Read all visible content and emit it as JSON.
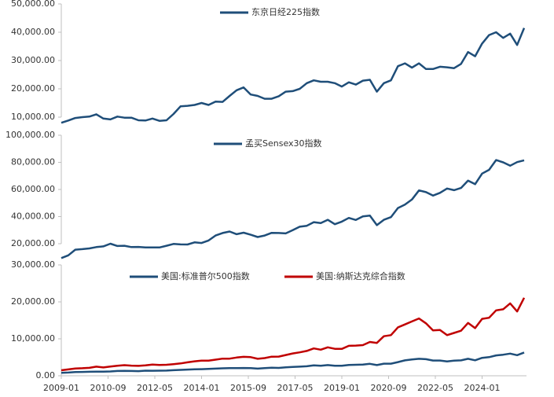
{
  "chart_data": [
    {
      "type": "line",
      "x": [
        "2009-01",
        "2009-04",
        "2009-07",
        "2009-10",
        "2010-01",
        "2010-04",
        "2010-07",
        "2010-10",
        "2011-01",
        "2011-04",
        "2011-07",
        "2011-10",
        "2012-01",
        "2012-04",
        "2012-07",
        "2012-10",
        "2013-01",
        "2013-04",
        "2013-07",
        "2013-10",
        "2014-01",
        "2014-04",
        "2014-07",
        "2014-10",
        "2015-01",
        "2015-04",
        "2015-07",
        "2015-10",
        "2016-01",
        "2016-04",
        "2016-07",
        "2016-10",
        "2017-01",
        "2017-04",
        "2017-07",
        "2017-10",
        "2018-01",
        "2018-04",
        "2018-07",
        "2018-10",
        "2019-01",
        "2019-04",
        "2019-07",
        "2019-10",
        "2020-01",
        "2020-04",
        "2020-07",
        "2020-10",
        "2021-01",
        "2021-04",
        "2021-07",
        "2021-10",
        "2022-01",
        "2022-04",
        "2022-07",
        "2022-10",
        "2023-01",
        "2023-04",
        "2023-07",
        "2023-10",
        "2024-01",
        "2024-04",
        "2024-07",
        "2024-10",
        "2025-01",
        "2025-04",
        "2025-07"
      ],
      "xlim": [
        "2009-01",
        "2025-08"
      ],
      "ylim": [
        10000,
        50000
      ],
      "yticks": [
        {
          "value": 10000,
          "label": "10,000.00"
        },
        {
          "value": 20000,
          "label": "20,000.00"
        },
        {
          "value": 30000,
          "label": "30,000.00"
        },
        {
          "value": 40000,
          "label": "40,000.00"
        },
        {
          "value": 50000,
          "label": "50,000.00"
        }
      ],
      "series": [
        {
          "name": "东京日经225指数",
          "color": "#1f4e79",
          "values": [
            8000,
            8800,
            9700,
            10000,
            10200,
            11000,
            9500,
            9200,
            10200,
            9800,
            9800,
            8900,
            8800,
            9500,
            8700,
            8900,
            11100,
            13800,
            14000,
            14300,
            15000,
            14300,
            15500,
            15400,
            17500,
            19500,
            20500,
            18000,
            17500,
            16500,
            16500,
            17400,
            19000,
            19200,
            20000,
            22000,
            23000,
            22500,
            22500,
            22000,
            20800,
            22300,
            21500,
            22900,
            23200,
            19000,
            22000,
            23000,
            28000,
            29000,
            27500,
            29000,
            27000,
            27000,
            27800,
            27600,
            27300,
            28800,
            33000,
            31500,
            36000,
            39000,
            40000,
            38000,
            39500,
            35500,
            41500
          ]
        }
      ]
    },
    {
      "type": "line",
      "x": [
        "2009-01",
        "2009-04",
        "2009-07",
        "2009-10",
        "2010-01",
        "2010-04",
        "2010-07",
        "2010-10",
        "2011-01",
        "2011-04",
        "2011-07",
        "2011-10",
        "2012-01",
        "2012-04",
        "2012-07",
        "2012-10",
        "2013-01",
        "2013-04",
        "2013-07",
        "2013-10",
        "2014-01",
        "2014-04",
        "2014-07",
        "2014-10",
        "2015-01",
        "2015-04",
        "2015-07",
        "2015-10",
        "2016-01",
        "2016-04",
        "2016-07",
        "2016-10",
        "2017-01",
        "2017-04",
        "2017-07",
        "2017-10",
        "2018-01",
        "2018-04",
        "2018-07",
        "2018-10",
        "2019-01",
        "2019-04",
        "2019-07",
        "2019-10",
        "2020-01",
        "2020-04",
        "2020-07",
        "2020-10",
        "2021-01",
        "2021-04",
        "2021-07",
        "2021-10",
        "2022-01",
        "2022-04",
        "2022-07",
        "2022-10",
        "2023-01",
        "2023-04",
        "2023-07",
        "2023-10",
        "2024-01",
        "2024-04",
        "2024-07",
        "2024-10",
        "2025-01",
        "2025-04",
        "2025-07"
      ],
      "xlim": [
        "2009-01",
        "2025-08"
      ],
      "ylim": [
        20000,
        100000
      ],
      "yticks": [
        {
          "value": 20000,
          "label": "20,000.00"
        },
        {
          "value": 40000,
          "label": "40,000.00"
        },
        {
          "value": 60000,
          "label": "60,000.00"
        },
        {
          "value": 80000,
          "label": "80,000.00"
        },
        {
          "value": 100000,
          "label": "100,000.00"
        }
      ],
      "series": [
        {
          "name": "孟买Sensex30指数",
          "color": "#1f4e79",
          "values": [
            9400,
            11400,
            15600,
            16000,
            16500,
            17500,
            18000,
            20000,
            18300,
            18500,
            17500,
            17600,
            17200,
            17300,
            17200,
            18500,
            19800,
            19500,
            19400,
            21000,
            20500,
            22400,
            26000,
            27900,
            29000,
            27000,
            28100,
            26600,
            24900,
            26000,
            28000,
            27900,
            27600,
            30000,
            32500,
            33200,
            35900,
            35200,
            37600,
            34400,
            36300,
            39000,
            37500,
            40100,
            40700,
            33700,
            37600,
            39600,
            46300,
            48800,
            52600,
            59300,
            58000,
            55500,
            57500,
            60700,
            59500,
            61100,
            66500,
            63900,
            71700,
            74500,
            81700,
            80000,
            77500,
            80200,
            81500
          ]
        }
      ]
    },
    {
      "type": "line",
      "x": [
        "2009-01",
        "2009-04",
        "2009-07",
        "2009-10",
        "2010-01",
        "2010-04",
        "2010-07",
        "2010-10",
        "2011-01",
        "2011-04",
        "2011-07",
        "2011-10",
        "2012-01",
        "2012-04",
        "2012-07",
        "2012-10",
        "2013-01",
        "2013-04",
        "2013-07",
        "2013-10",
        "2014-01",
        "2014-04",
        "2014-07",
        "2014-10",
        "2015-01",
        "2015-04",
        "2015-07",
        "2015-10",
        "2016-01",
        "2016-04",
        "2016-07",
        "2016-10",
        "2017-01",
        "2017-04",
        "2017-07",
        "2017-10",
        "2018-01",
        "2018-04",
        "2018-07",
        "2018-10",
        "2019-01",
        "2019-04",
        "2019-07",
        "2019-10",
        "2020-01",
        "2020-04",
        "2020-07",
        "2020-10",
        "2021-01",
        "2021-04",
        "2021-07",
        "2021-10",
        "2022-01",
        "2022-04",
        "2022-07",
        "2022-10",
        "2023-01",
        "2023-04",
        "2023-07",
        "2023-10",
        "2024-01",
        "2024-04",
        "2024-07",
        "2024-10",
        "2025-01",
        "2025-04",
        "2025-07"
      ],
      "xlim": [
        "2009-01",
        "2025-08"
      ],
      "xticks": [
        "2009-01",
        "2010-09",
        "2012-05",
        "2014-01",
        "2015-09",
        "2017-05",
        "2019-01",
        "2020-09",
        "2022-05",
        "2024-01"
      ],
      "ylim": [
        0,
        30000
      ],
      "yticks": [
        {
          "value": 0,
          "label": "0.00"
        },
        {
          "value": 10000,
          "label": "10,000.00"
        },
        {
          "value": 20000,
          "label": "20,000.00"
        },
        {
          "value": 30000,
          "label": "30,000.00"
        }
      ],
      "series": [
        {
          "name": "美国:标准普尔500指数",
          "color": "#1f4e79",
          "values": [
            800,
            870,
            990,
            1040,
            1080,
            1100,
            1100,
            1180,
            1290,
            1340,
            1290,
            1250,
            1380,
            1360,
            1380,
            1410,
            1500,
            1600,
            1680,
            1750,
            1780,
            1880,
            1930,
            2020,
            2060,
            2080,
            2100,
            2080,
            1940,
            2070,
            2170,
            2130,
            2280,
            2390,
            2470,
            2580,
            2820,
            2700,
            2900,
            2710,
            2700,
            2940,
            2980,
            3050,
            3230,
            2900,
            3270,
            3270,
            3710,
            4180,
            4400,
            4600,
            4500,
            4130,
            4130,
            3870,
            4080,
            4170,
            4590,
            4190,
            4850,
            5040,
            5520,
            5710,
            6000,
            5570,
            6300
          ]
        },
        {
          "name": "美国:纳斯达克综合指数",
          "color": "#c00000",
          "values": [
            1480,
            1720,
            1980,
            2050,
            2150,
            2460,
            2250,
            2500,
            2700,
            2870,
            2750,
            2680,
            2810,
            3050,
            2940,
            2980,
            3140,
            3330,
            3630,
            3920,
            4100,
            4110,
            4370,
            4630,
            4640,
            4940,
            5130,
            5050,
            4600,
            4780,
            5160,
            5190,
            5620,
            6050,
            6350,
            6720,
            7400,
            7070,
            7700,
            7300,
            7280,
            8100,
            8170,
            8300,
            9150,
            8900,
            10700,
            11000,
            13100,
            13900,
            14700,
            15500,
            14200,
            12300,
            12400,
            10990,
            11600,
            12200,
            14300,
            12900,
            15400,
            15700,
            17700,
            18000,
            19600,
            17400,
            21100
          ]
        }
      ]
    }
  ]
}
